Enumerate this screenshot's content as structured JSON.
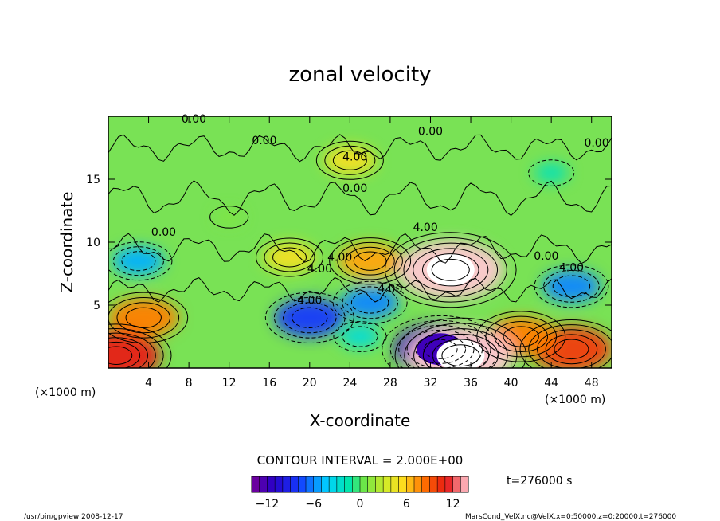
{
  "chart_data": {
    "type": "heatmap",
    "title": "zonal velocity",
    "xlabel": "X-coordinate",
    "ylabel": "Z-coordinate",
    "x_unit": "(×1000 m)",
    "y_unit": "(×1000 m)",
    "xlim": [
      0,
      50
    ],
    "ylim": [
      0,
      20
    ],
    "x_ticks": [
      "4",
      "8",
      "12",
      "16",
      "20",
      "24",
      "28",
      "32",
      "36",
      "40",
      "44",
      "48"
    ],
    "y_ticks": [
      "5",
      "10",
      "15"
    ],
    "contour_interval_text": "CONTOUR INTERVAL = 2.000E+00",
    "time_text": "t=276000 s",
    "colorbar_range": [
      -14,
      14
    ],
    "colorbar_ticks": [
      "−12",
      "−6",
      "0",
      "6",
      "12"
    ],
    "contour_labels": [
      "0.00",
      "0.00",
      "0.00",
      "0.00",
      "0.00",
      "0.00",
      "0.00",
      "4.00",
      "4.00",
      "4.00",
      "4.00",
      "4.00",
      "4.00",
      "4.00"
    ],
    "features": [
      {
        "x": 34,
        "z": 7.8,
        "value": 14
      },
      {
        "x": 26,
        "z": 8.5,
        "value": 7
      },
      {
        "x": 18,
        "z": 8.8,
        "value": 5
      },
      {
        "x": 24,
        "z": 16.5,
        "value": 5
      },
      {
        "x": 3.5,
        "z": 4,
        "value": 8
      },
      {
        "x": 0.8,
        "z": 1,
        "value": 11
      },
      {
        "x": 46,
        "z": 1.5,
        "value": 10
      },
      {
        "x": 41,
        "z": 2.5,
        "value": 8
      },
      {
        "x": 20,
        "z": 4,
        "value": -8
      },
      {
        "x": 26,
        "z": 5.2,
        "value": -6
      },
      {
        "x": 33,
        "z": 1.5,
        "value": -12
      },
      {
        "x": 35,
        "z": 1,
        "value": 14
      },
      {
        "x": 3,
        "z": 8.5,
        "value": -5
      },
      {
        "x": 46,
        "z": 6.5,
        "value": -6
      },
      {
        "x": 25,
        "z": 2.5,
        "value": -3
      },
      {
        "x": 12,
        "z": 12,
        "value": 1
      },
      {
        "x": 44,
        "z": 15.5,
        "value": -2
      }
    ]
  },
  "footer": {
    "program": "/usr/bin/gpview  2008-12-17",
    "source": "MarsCond_VelX.nc@VelX,x=0:50000,z=0:20000,t=276000"
  }
}
